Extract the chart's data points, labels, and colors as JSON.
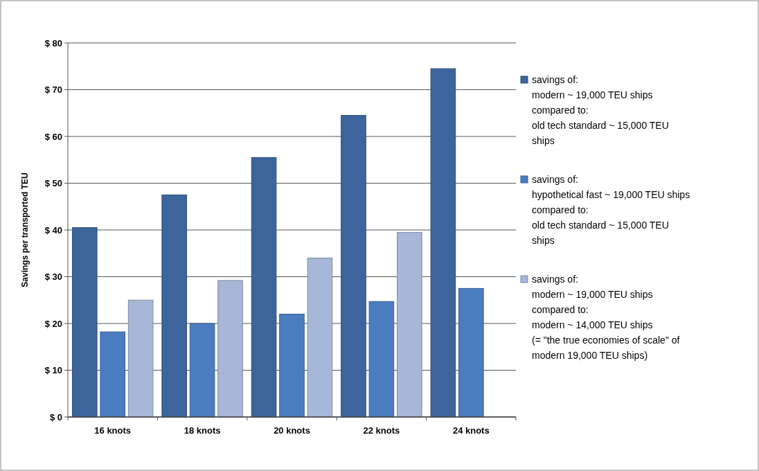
{
  "chart_data": {
    "type": "bar",
    "ylabel": "Savings per transported TEU",
    "categories": [
      "16 knots",
      "18 knots",
      "20 knots",
      "22 knots",
      "24 knots"
    ],
    "series": [
      {
        "name": "savings of:\nmodern ~ 19,000 TEU ships\ncompared to:\nold tech standard ~ 15,000 TEU\nships",
        "color": "#3d659c",
        "values": [
          40.5,
          47.5,
          55.5,
          64.5,
          74.5
        ]
      },
      {
        "name": "savings of:\nhypothetical fast ~ 19,000 TEU ships\ncompared to:\nold tech standard ~ 15,000 TEU\nships",
        "color": "#4a7dc0",
        "values": [
          18.2,
          20,
          22,
          24.7,
          27.5
        ]
      },
      {
        "name": "savings of:\nmodern ~ 19,000 TEU ships\ncompared to:\nmodern ~ 14,000 TEU ships\n(= \"the true economies of scale\" of\nmodern 19,000 TEU ships)",
        "color": "#a7b7d7",
        "values": [
          25,
          29.2,
          34,
          39.5,
          null
        ]
      }
    ],
    "ylim": [
      0,
      80
    ],
    "yticks": [
      {
        "value": 0,
        "label": "$ 0"
      },
      {
        "value": 10,
        "label": "$ 10"
      },
      {
        "value": 20,
        "label": "$ 20"
      },
      {
        "value": 30,
        "label": "$ 30"
      },
      {
        "value": 40,
        "label": "$ 40"
      },
      {
        "value": 50,
        "label": "$ 50"
      },
      {
        "value": 60,
        "label": "$ 60"
      },
      {
        "value": 70,
        "label": "$ 70"
      },
      {
        "value": 80,
        "label": "$ 80"
      }
    ],
    "grid": "y",
    "legend": "right"
  }
}
